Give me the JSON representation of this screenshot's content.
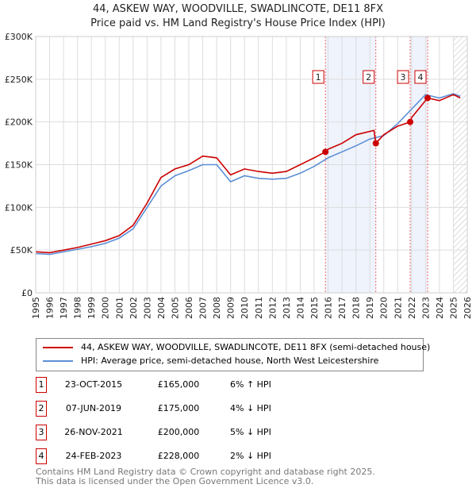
{
  "title": "44, ASKEW WAY, WOODVILLE, SWADLINCOTE, DE11 8FX",
  "subtitle": "Price paid vs. HM Land Registry's House Price Index (HPI)",
  "chart_data": {
    "type": "line",
    "title": "44, ASKEW WAY, WOODVILLE, SWADLINCOTE, DE11 8FX",
    "xlim": [
      1995,
      2026
    ],
    "ylim": [
      0,
      300000
    ],
    "yticks": [
      0,
      50000,
      100000,
      150000,
      200000,
      250000,
      300000
    ],
    "ytick_labels": [
      "£0",
      "£50K",
      "£100K",
      "£150K",
      "£200K",
      "£250K",
      "£300K"
    ],
    "xticks": [
      "1995",
      "1996",
      "1997",
      "1998",
      "1999",
      "2000",
      "2001",
      "2002",
      "2003",
      "2004",
      "2005",
      "2006",
      "2007",
      "2008",
      "2009",
      "2010",
      "2011",
      "2012",
      "2013",
      "2014",
      "2015",
      "2016",
      "2017",
      "2018",
      "2019",
      "2020",
      "2021",
      "2022",
      "2023",
      "2024",
      "2025",
      "2026"
    ],
    "grid": true,
    "colors": {
      "property": "#cc0000",
      "hpi": "#5b8fd6",
      "shade": "#eef3fc"
    },
    "series": [
      {
        "name": "44, ASKEW WAY, WOODVILLE, SWADLINCOTE, DE11 8FX (semi-detached house)",
        "x": [
          1995,
          1996,
          1997,
          1998,
          1999,
          2000,
          2001,
          2002,
          2003,
          2004,
          2005,
          2006,
          2007,
          2008,
          2009,
          2010,
          2011,
          2012,
          2013,
          2014,
          2015,
          2015.81,
          2016,
          2017,
          2018,
          2019.3,
          2019.43,
          2020,
          2021,
          2021.9,
          2022,
          2023.15,
          2024,
          2025,
          2025.5
        ],
        "y": [
          48000,
          47000,
          50000,
          53000,
          57000,
          61000,
          67000,
          79000,
          105000,
          135000,
          145000,
          150000,
          160000,
          158000,
          138000,
          145000,
          142000,
          140000,
          142000,
          150000,
          158000,
          165000,
          168000,
          175000,
          185000,
          190000,
          175000,
          185000,
          195000,
          200000,
          205000,
          228000,
          225000,
          232000,
          228000
        ]
      },
      {
        "name": "HPI: Average price, semi-detached house, North West Leicestershire",
        "x": [
          1995,
          1996,
          1997,
          1998,
          1999,
          2000,
          2001,
          2002,
          2003,
          2004,
          2005,
          2006,
          2007,
          2008,
          2009,
          2010,
          2011,
          2012,
          2013,
          2014,
          2015,
          2016,
          2017,
          2018,
          2019,
          2020,
          2021,
          2022,
          2023,
          2024,
          2025,
          2025.5
        ],
        "y": [
          46000,
          45000,
          48000,
          51000,
          54000,
          58000,
          64000,
          75000,
          100000,
          125000,
          137000,
          143000,
          150000,
          150000,
          130000,
          137000,
          134000,
          133000,
          134000,
          140000,
          148000,
          158000,
          165000,
          172000,
          180000,
          184000,
          198000,
          215000,
          232000,
          228000,
          233000,
          230000
        ]
      }
    ],
    "sales": [
      {
        "n": "1",
        "x": 2015.81,
        "y": 165000
      },
      {
        "n": "2",
        "x": 2019.43,
        "y": 175000
      },
      {
        "n": "3",
        "x": 2021.9,
        "y": 200000
      },
      {
        "n": "4",
        "x": 2023.15,
        "y": 228000
      }
    ],
    "shaded": [
      [
        2015.81,
        2019.43
      ],
      [
        2021.9,
        2023.15
      ]
    ],
    "hatch_from": 2025.0
  },
  "legend": [
    "44, ASKEW WAY, WOODVILLE, SWADLINCOTE, DE11 8FX (semi-detached house)",
    "HPI: Average price, semi-detached house, North West Leicestershire"
  ],
  "table": [
    {
      "n": "1",
      "date": "23-OCT-2015",
      "price": "£165,000",
      "hpi": "6% ↑ HPI"
    },
    {
      "n": "2",
      "date": "07-JUN-2019",
      "price": "£175,000",
      "hpi": "4% ↓ HPI"
    },
    {
      "n": "3",
      "date": "26-NOV-2021",
      "price": "£200,000",
      "hpi": "5% ↓ HPI"
    },
    {
      "n": "4",
      "date": "24-FEB-2023",
      "price": "£228,000",
      "hpi": "2% ↓ HPI"
    }
  ],
  "footer": [
    "Contains HM Land Registry data © Crown copyright and database right 2025.",
    "This data is licensed under the Open Government Licence v3.0."
  ]
}
